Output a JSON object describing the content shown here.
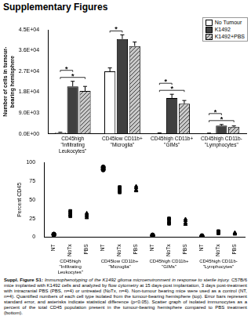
{
  "document": {
    "title": "Supplementary Figures",
    "caption": {
      "label": "Suppl. Figure S1:",
      "title": "Immunophenotyping of the K1492 glioma microenvironment in response to sterile injury.",
      "text": "C57B/6 mice implanted with K1492 cells and analyzed by flow cytometry at 15 days-post implantation, 3 days post-treatment with intracranial PBS (PBS, n=4) or untreated (NoTx, n=4). Non-tumour bearing mice were used as a control (NT, n=4). Quantified numbers of each cell type isolated from the tumour-bearing hemisphere (top). Error bars represent standard error, and asterisks indicate statistical difference (p<0.05). Scatter graph of isolated immunocytes as a percent of the total CD45 population present in the tumour-bearing hemisphere compared to PBS treatment (bottom)."
    }
  },
  "chart_data": [
    {
      "type": "bar",
      "y_label": [
        "Number of cells in tumour-",
        "bearing hemisphere"
      ],
      "categories": [
        [
          "CD45high",
          "\"Infiltrating",
          "Leukocytes\""
        ],
        [
          "CD45low CD11b+",
          "\"Microglia\""
        ],
        [
          "CD45high CD11b+",
          "\"GIMs\""
        ],
        [
          "CD45high CD11b-",
          "\"Lymphocytes\""
        ]
      ],
      "series": [
        {
          "name": "No Tumour",
          "color": "#ffffff",
          "values": [
            500,
            27000,
            300,
            200
          ],
          "errors": [
            150,
            1500,
            100,
            80
          ]
        },
        {
          "name": "K1492",
          "color": "#404040",
          "values": [
            20500,
            41000,
            15500,
            3500
          ],
          "errors": [
            2200,
            1800,
            1600,
            500
          ]
        },
        {
          "name": "K1492+PBS",
          "color": "#c8c8c8",
          "values": [
            18500,
            38000,
            13000,
            3000
          ],
          "errors": [
            2000,
            1700,
            1400,
            400
          ]
        }
      ],
      "annotations": [
        {
          "text": "*",
          "category": 0,
          "from": "No Tumour",
          "to": "K1492+PBS"
        },
        {
          "text": "*",
          "category": 0,
          "from": "No Tumour",
          "to": "K1492"
        },
        {
          "text": "*",
          "category": 1,
          "from": "No Tumour",
          "to": "K1492"
        },
        {
          "text": "*",
          "category": 2,
          "from": "No Tumour",
          "to": "K1492+PBS"
        },
        {
          "text": "*",
          "category": 2,
          "from": "No Tumour",
          "to": "K1492"
        },
        {
          "text": "*",
          "category": 3,
          "from": "No Tumour",
          "to": "K1492+PBS"
        },
        {
          "text": "*",
          "category": 3,
          "from": "No Tumour",
          "to": "K1492"
        }
      ],
      "ylim": [
        0,
        45000
      ],
      "yticks": [
        {
          "value": 0,
          "label": "0.0E+00"
        },
        {
          "value": 9000,
          "label": "9.0E+03"
        },
        {
          "value": 18000,
          "label": "1.8E+04"
        },
        {
          "value": 27000,
          "label": "2.7E+04"
        },
        {
          "value": 36000,
          "label": "3.6E+04"
        },
        {
          "value": 45000,
          "label": "4.5E+04"
        }
      ],
      "legend": "top-right",
      "grid": false
    },
    {
      "type": "scatter",
      "y_label": "Percent CD45",
      "categories": [
        "NT",
        "NoTx",
        "PBS",
        "NT",
        "NoTx",
        "PBS",
        "NT",
        "NoTx",
        "PBS",
        "NT",
        "NoTx",
        "PBS"
      ],
      "groups": [
        [
          "CD45high",
          "\"Infiltrating",
          "Leukocytes\""
        ],
        [
          "CD45low CD11b+",
          "\"Microglia\""
        ],
        [
          "CD45high CD11b+",
          "\"GIMs\""
        ],
        [
          "CD45high CD11b-",
          "\"Lymphocytes\""
        ]
      ],
      "series": [
        {
          "name": "NT",
          "marker": "circle",
          "color": "#000000",
          "values": [
            [
              3,
              4,
              3,
              4
            ],
            [
              93,
              91,
              90,
              94
            ],
            [
              2,
              2,
              3,
              2
            ],
            [
              1,
              1,
              2,
              1
            ]
          ]
        },
        {
          "name": "NoTx",
          "marker": "square",
          "color": "#000000",
          "values": [
            [
              33,
              30,
              28,
              35
            ],
            [
              65,
              62,
              60,
              67
            ],
            [
              24,
              20,
              18,
              25
            ],
            [
              6,
              5,
              7,
              8
            ]
          ]
        },
        {
          "name": "PBS",
          "marker": "triangle",
          "color": "#000000",
          "values": [
            [
              30,
              26,
              28,
              32
            ],
            [
              66,
              63,
              62,
              68
            ],
            [
              22,
              19,
              17,
              24
            ],
            [
              5,
              4,
              6,
              5
            ]
          ]
        }
      ],
      "ylim": [
        0,
        100
      ],
      "yticks": [
        0,
        25,
        50,
        75,
        100
      ],
      "grid": false
    }
  ]
}
